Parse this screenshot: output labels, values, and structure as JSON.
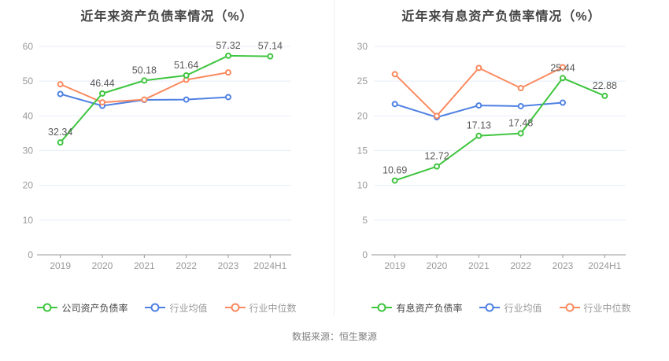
{
  "page": {
    "source_note": "数据来源：恒生聚源"
  },
  "colors": {
    "company_green": "#3fc53f",
    "industry_mean_blue": "#4f81e3",
    "industry_median_orange": "#fa8a5f",
    "grid_line": "#e8edf6",
    "axis_line": "#999999",
    "tick_label": "#999999",
    "data_label": "#595959",
    "title_text": "#454545",
    "legend_active_label": "#404040",
    "legend_muted_label": "#999999",
    "divider": "#ececec",
    "source_text": "#808080"
  },
  "chart_data": [
    {
      "type": "line",
      "title": "近年来资产负债率情况（%）",
      "categories": [
        "2019",
        "2020",
        "2021",
        "2022",
        "2023",
        "2024H1"
      ],
      "ylim": [
        0,
        60
      ],
      "ytick_labels": [
        "0",
        "10",
        "20",
        "30",
        "40",
        "50",
        "60"
      ],
      "grid": true,
      "legend_position": "bottom",
      "series": [
        {
          "name": "公司资产负债率",
          "color": "#3fc53f",
          "values": [
            32.34,
            46.44,
            50.18,
            51.64,
            57.32,
            57.14
          ],
          "point_labels": [
            "32.34",
            "46.44",
            "50.18",
            "51.64",
            "57.32",
            "57.14"
          ],
          "show_labels": true
        },
        {
          "name": "行业均值",
          "color": "#4f81e3",
          "values": [
            46.3,
            42.9,
            44.6,
            44.7,
            45.4,
            null
          ],
          "show_labels": false
        },
        {
          "name": "行业中位数",
          "color": "#fa8a5f",
          "values": [
            49.1,
            43.9,
            44.7,
            50.4,
            52.5,
            null
          ],
          "show_labels": false
        }
      ]
    },
    {
      "type": "line",
      "title": "近年来有息资产负债率情况（%）",
      "categories": [
        "2019",
        "2020",
        "2021",
        "2022",
        "2023",
        "2024H1"
      ],
      "ylim": [
        0,
        30
      ],
      "ytick_labels": [
        "0",
        "5",
        "10",
        "15",
        "20",
        "25",
        "30"
      ],
      "grid": true,
      "legend_position": "bottom",
      "series": [
        {
          "name": "有息资产负债率",
          "color": "#3fc53f",
          "values": [
            10.69,
            12.72,
            17.13,
            17.48,
            25.44,
            22.88
          ],
          "point_labels": [
            "10.69",
            "12.72",
            "17.13",
            "17.48",
            "25.44",
            "22.88"
          ],
          "show_labels": true
        },
        {
          "name": "行业均值",
          "color": "#4f81e3",
          "values": [
            21.7,
            19.8,
            21.5,
            21.4,
            21.9,
            null
          ],
          "show_labels": false
        },
        {
          "name": "行业中位数",
          "color": "#fa8a5f",
          "values": [
            26.0,
            20.0,
            26.9,
            24.0,
            27.0,
            null
          ],
          "show_labels": false
        }
      ]
    }
  ]
}
